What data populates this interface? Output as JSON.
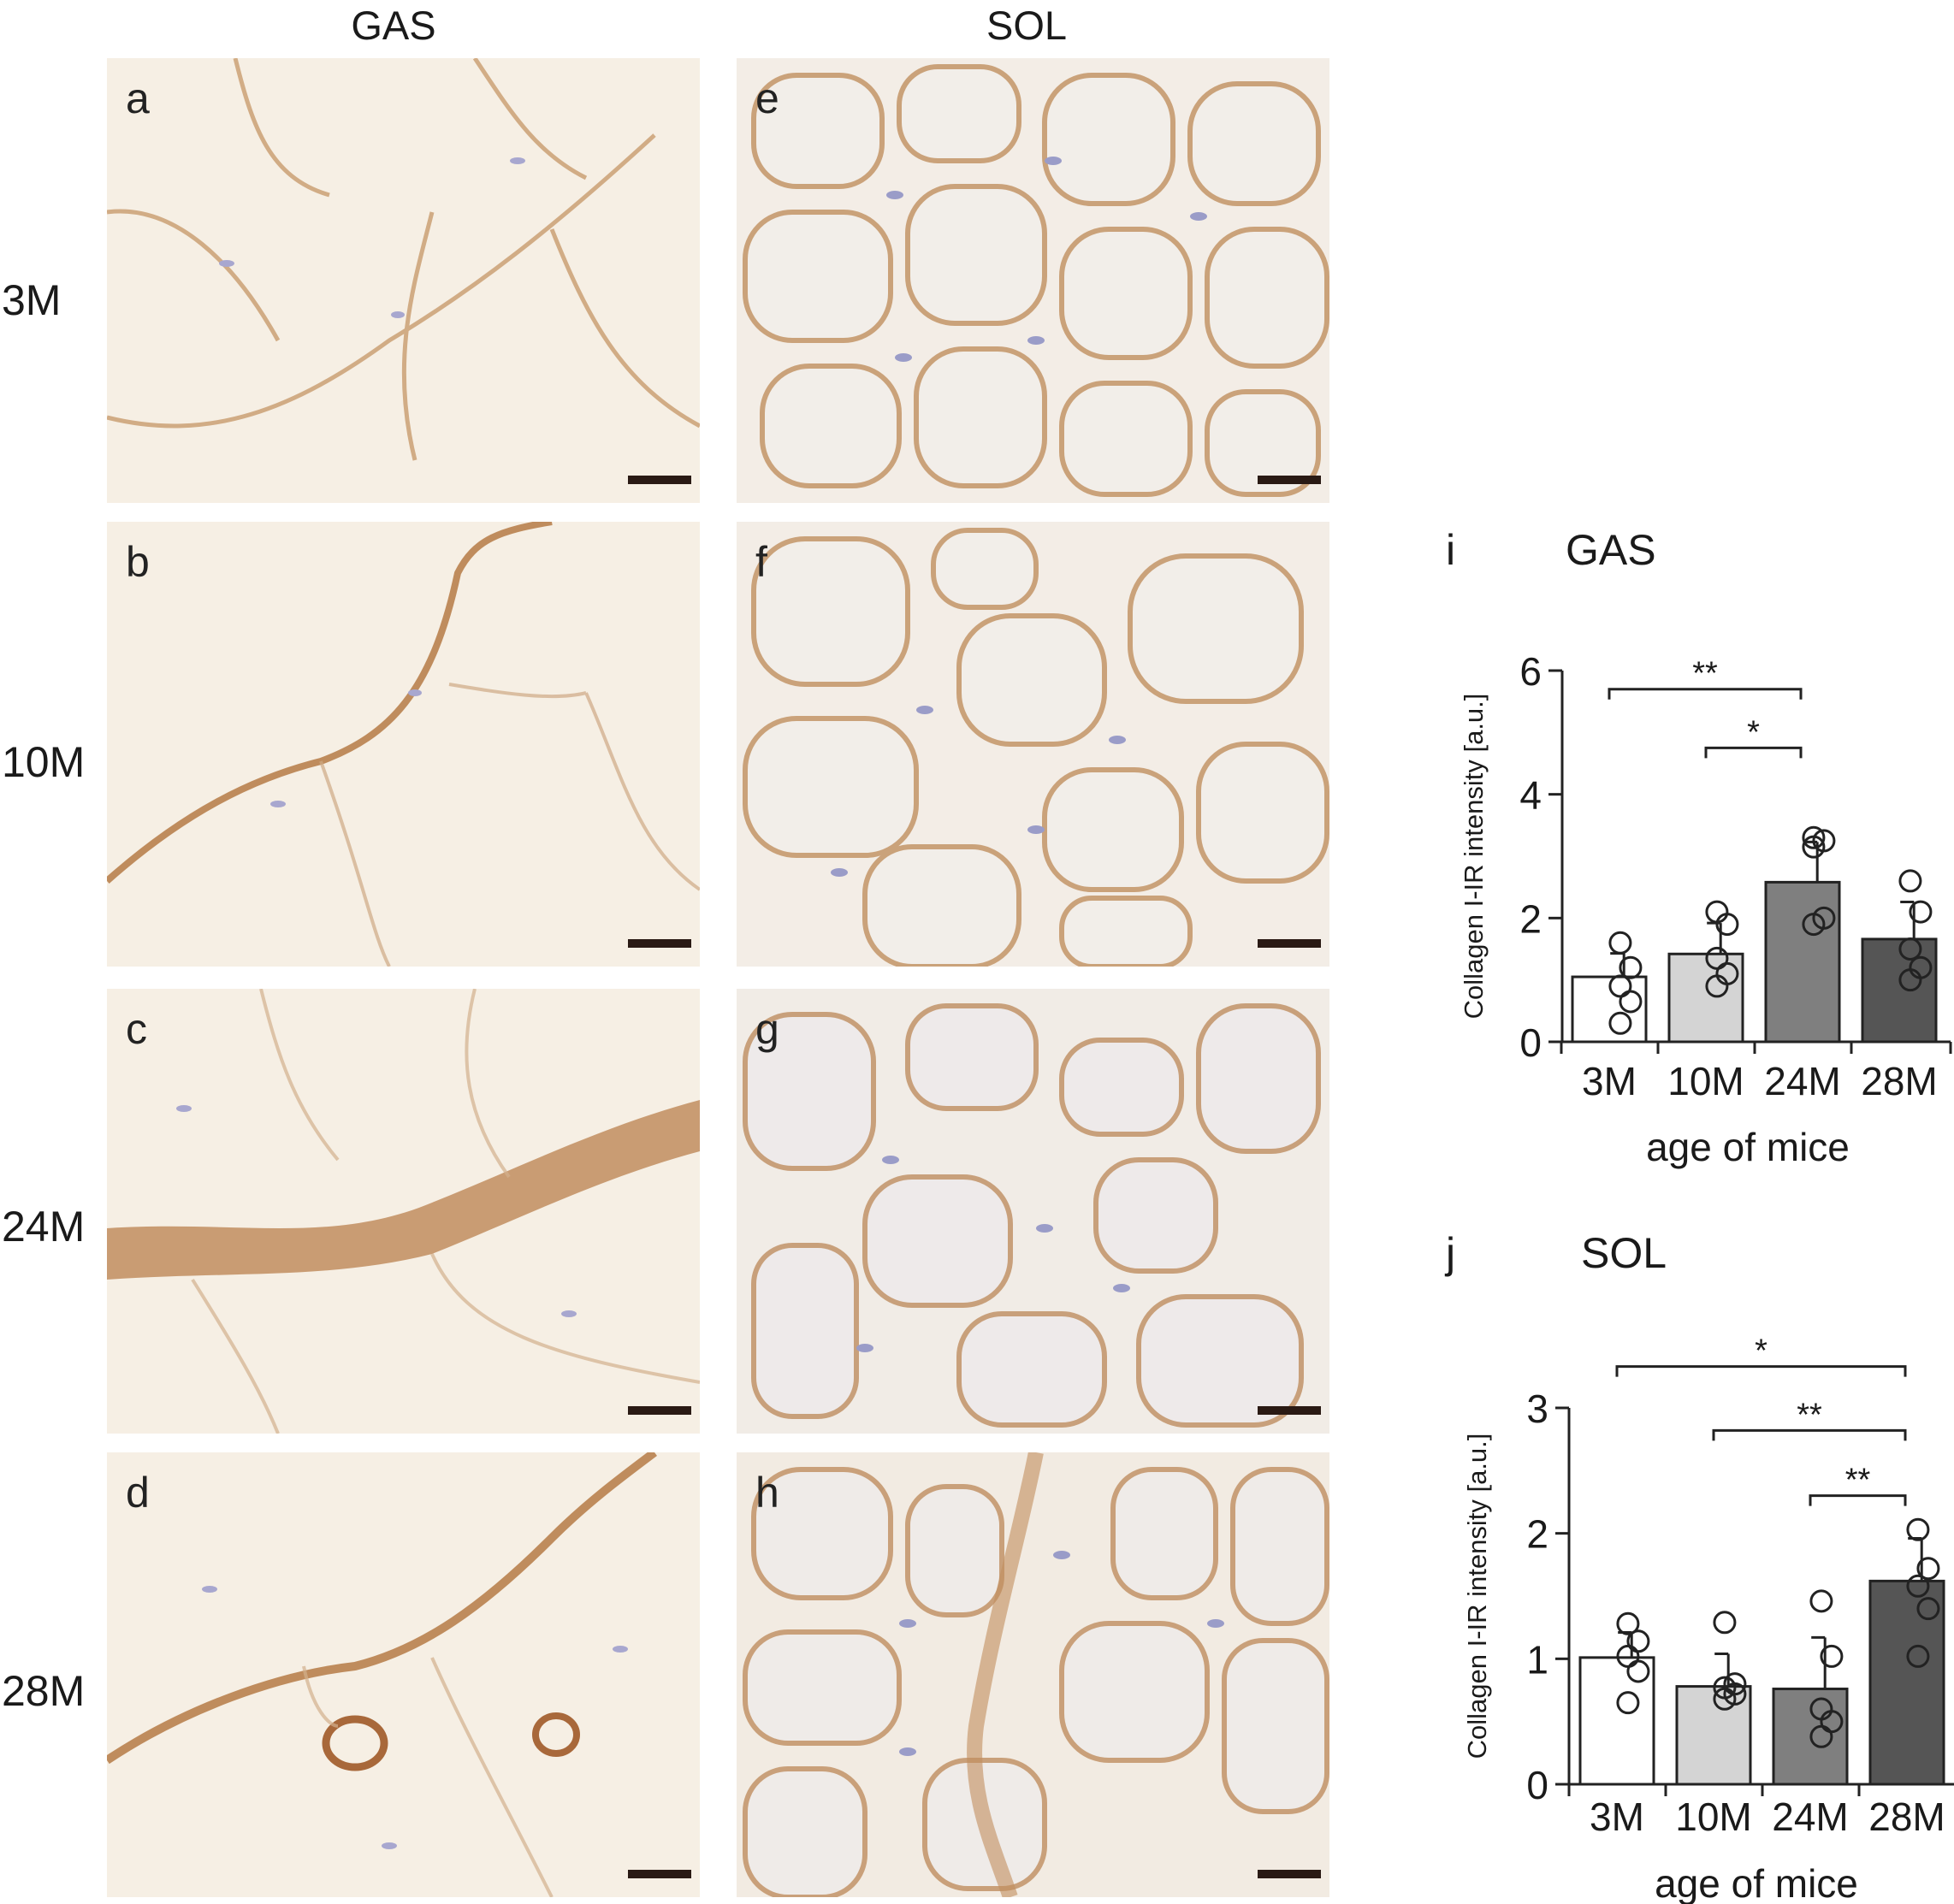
{
  "column_titles": [
    "GAS",
    "SOL"
  ],
  "row_titles": [
    "3M",
    "10M",
    "24M",
    "28M"
  ],
  "panels": [
    {
      "letter": "a",
      "muscle": "GAS",
      "age": "3M"
    },
    {
      "letter": "b",
      "muscle": "GAS",
      "age": "10M"
    },
    {
      "letter": "c",
      "muscle": "GAS",
      "age": "24M"
    },
    {
      "letter": "d",
      "muscle": "GAS",
      "age": "28M"
    },
    {
      "letter": "e",
      "muscle": "SOL",
      "age": "3M"
    },
    {
      "letter": "f",
      "muscle": "SOL",
      "age": "10M"
    },
    {
      "letter": "g",
      "muscle": "SOL",
      "age": "24M"
    },
    {
      "letter": "h",
      "muscle": "SOL",
      "age": "28M"
    }
  ],
  "colors": {
    "stain_brown": "#b57a45",
    "tissue_bg": "#f6efe4",
    "nuclei": "#9a9cc8",
    "bar_3M": "#ffffff",
    "bar_10M": "#d4d4d4",
    "bar_24M": "#7f7f7f",
    "bar_28M": "#555555"
  },
  "chart_data": [
    {
      "id": "i",
      "title": "GAS",
      "type": "bar",
      "categories": [
        "3M",
        "10M",
        "24M",
        "28M"
      ],
      "values": [
        1.05,
        1.42,
        2.58,
        1.66
      ],
      "errors": [
        0.38,
        0.5,
        0.65,
        0.6
      ],
      "points": [
        [
          0.3,
          0.65,
          0.9,
          1.2,
          1.6
        ],
        [
          0.9,
          1.1,
          1.35,
          1.9,
          2.1
        ],
        [
          1.9,
          2.0,
          3.15,
          3.25,
          3.3
        ],
        [
          1.0,
          1.2,
          1.5,
          2.1,
          2.6
        ]
      ],
      "ylabel": "Collagen I-IR intensity [a.u.]",
      "xlabel": "age of mice",
      "ylim": [
        0,
        6
      ],
      "yticks": [
        "0",
        "2",
        "4",
        "6"
      ],
      "significance": [
        {
          "from": "3M",
          "to": "24M",
          "label": "**",
          "level": 5.7
        },
        {
          "from": "10M",
          "to": "24M",
          "label": "*",
          "level": 4.75
        }
      ]
    },
    {
      "id": "j",
      "title": "SOL",
      "type": "bar",
      "categories": [
        "3M",
        "10M",
        "24M",
        "28M"
      ],
      "values": [
        1.01,
        0.78,
        0.76,
        1.62
      ],
      "errors": [
        0.2,
        0.26,
        0.41,
        0.34
      ],
      "points": [
        [
          0.65,
          0.9,
          1.02,
          1.14,
          1.28
        ],
        [
          0.68,
          0.72,
          0.77,
          0.8,
          1.29
        ],
        [
          0.38,
          0.5,
          0.6,
          1.02,
          1.46
        ],
        [
          1.02,
          1.4,
          1.58,
          1.72,
          2.03
        ]
      ],
      "ylabel": "Collagen I-IR intensity [a.u.]",
      "xlabel": "age of mice",
      "ylim": [
        0,
        3
      ],
      "yticks": [
        "0",
        "1",
        "2",
        "3"
      ],
      "significance": [
        {
          "from": "3M",
          "to": "28M",
          "label": "*",
          "level": 3.33
        },
        {
          "from": "10M",
          "to": "28M",
          "label": "**",
          "level": 2.82
        },
        {
          "from": "24M",
          "to": "28M",
          "label": "**",
          "level": 2.3
        }
      ]
    }
  ]
}
